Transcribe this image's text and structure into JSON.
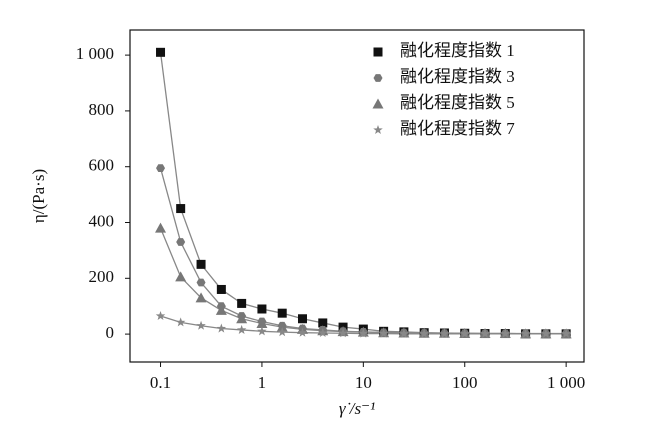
{
  "chart_data": {
    "type": "scatter",
    "log_x": true,
    "x_label": "γ̇ /s⁻¹",
    "y_label": "η/(Pa·s)",
    "x": [
      0.1,
      0.158,
      0.251,
      0.398,
      0.631,
      1,
      1.585,
      2.512,
      3.981,
      6.31,
      10,
      15.85,
      25.12,
      39.81,
      63.1,
      100,
      158.5,
      251.2,
      398.1,
      631,
      1000
    ],
    "series": [
      {
        "name": "融化程度指数 1",
        "color": "#111111",
        "marker": "square",
        "values": [
          1010,
          450,
          250,
          160,
          110,
          90,
          75,
          55,
          40,
          25,
          18,
          10,
          8,
          5,
          4,
          3,
          2,
          2,
          1,
          1,
          1
        ]
      },
      {
        "name": "融化程度指数 3",
        "color": "#777777",
        "marker": "hexagon",
        "values": [
          595,
          330,
          185,
          100,
          65,
          45,
          30,
          20,
          15,
          10,
          8,
          6,
          5,
          4,
          3,
          3,
          2,
          2,
          2,
          2,
          2
        ]
      },
      {
        "name": "融化程度指数 5",
        "color": "#777777",
        "marker": "triangle",
        "values": [
          380,
          205,
          130,
          85,
          55,
          38,
          25,
          17,
          12,
          9,
          7,
          5,
          4,
          3,
          3,
          2,
          2,
          2,
          1,
          1,
          1
        ]
      },
      {
        "name": "融化程度指数 7",
        "color": "#888888",
        "marker": "star",
        "values": [
          65,
          42,
          30,
          20,
          15,
          10,
          7,
          5,
          4,
          3,
          2,
          2,
          1,
          1,
          1,
          1,
          1,
          1,
          1,
          1,
          1
        ]
      }
    ],
    "curve_color": "#888888",
    "xlim": [
      0.05,
      1500
    ],
    "ylim": [
      -100,
      1090
    ],
    "xticks": [
      {
        "value": 0.1,
        "label": "0.1"
      },
      1,
      10,
      100,
      {
        "value": 1000,
        "label": "1 000"
      }
    ],
    "yticks": [
      0,
      200,
      400,
      600,
      800,
      {
        "value": 1000,
        "label": "1 000"
      }
    ],
    "legend": "upper right"
  }
}
